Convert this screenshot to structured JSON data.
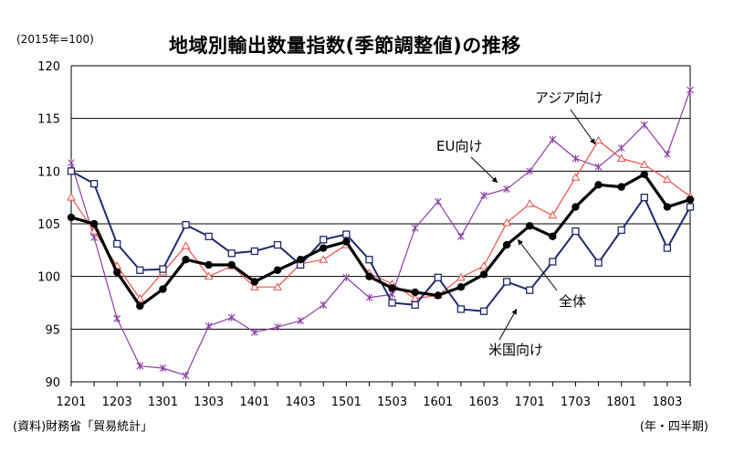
{
  "header": {
    "unit": "(2015年=100)",
    "title": "地域別輸出数量指数(季節調整値)の推移"
  },
  "footer": {
    "source": "(資料)財務省「貿易統計」",
    "period": "(年・四半期)"
  },
  "chart_data": {
    "type": "line",
    "title": "地域別輸出数量指数(季節調整値)の推移",
    "xlabel": "(年・四半期)",
    "ylabel": "(2015年=100)",
    "ylim": [
      90,
      120
    ],
    "yticks": [
      90,
      95,
      100,
      105,
      110,
      115,
      120
    ],
    "grid": true,
    "x": [
      "1201",
      "1202",
      "1203",
      "1204",
      "1301",
      "1302",
      "1303",
      "1304",
      "1401",
      "1402",
      "1403",
      "1404",
      "1501",
      "1502",
      "1503",
      "1504",
      "1601",
      "1602",
      "1603",
      "1604",
      "1701",
      "1702",
      "1703",
      "1704",
      "1801",
      "1802",
      "1803",
      "1804"
    ],
    "xticklabels": [
      "1201",
      "1203",
      "1301",
      "1303",
      "1401",
      "1403",
      "1501",
      "1503",
      "1601",
      "1603",
      "1701",
      "1703",
      "1801",
      "1803"
    ],
    "series": [
      {
        "name": "全体",
        "color": "#000000",
        "marker": "dot",
        "values": [
          105.6,
          105.0,
          100.4,
          97.2,
          98.8,
          101.6,
          101.1,
          101.1,
          99.5,
          100.6,
          101.6,
          102.7,
          103.3,
          100.0,
          98.9,
          98.5,
          98.2,
          99.0,
          100.2,
          103.0,
          104.8,
          103.8,
          106.6,
          108.7,
          108.5,
          109.7,
          106.6,
          107.3
        ]
      },
      {
        "name": "米国向け",
        "color": "#1f2a6e",
        "marker": "square",
        "values": [
          110.0,
          108.8,
          103.1,
          100.6,
          100.7,
          104.9,
          103.8,
          102.2,
          102.4,
          103.0,
          101.1,
          103.5,
          104.0,
          101.6,
          97.5,
          97.3,
          99.9,
          96.9,
          96.7,
          99.5,
          98.7,
          101.4,
          104.3,
          101.3,
          104.4,
          107.5,
          102.7,
          106.6
        ]
      },
      {
        "name": "アジア向け",
        "color": "#e8514a",
        "marker": "triangle",
        "values": [
          107.5,
          104.3,
          101.0,
          97.9,
          100.4,
          102.9,
          100.0,
          101.0,
          99.0,
          99.0,
          101.2,
          101.6,
          103.0,
          100.3,
          99.3,
          97.9,
          98.2,
          99.9,
          101.0,
          105.1,
          106.9,
          105.8,
          109.4,
          112.9,
          111.2,
          110.6,
          109.2,
          107.6
        ]
      },
      {
        "name": "EU向け",
        "color": "#8a3fa6",
        "marker": "x",
        "values": [
          110.8,
          103.7,
          96.0,
          91.5,
          91.3,
          90.6,
          95.3,
          96.1,
          94.7,
          95.2,
          95.8,
          97.3,
          99.9,
          98.0,
          98.3,
          104.6,
          107.1,
          103.8,
          107.7,
          108.3,
          110.0,
          113.0,
          111.2,
          110.4,
          112.2,
          114.4,
          111.6,
          117.7
        ]
      }
    ]
  }
}
